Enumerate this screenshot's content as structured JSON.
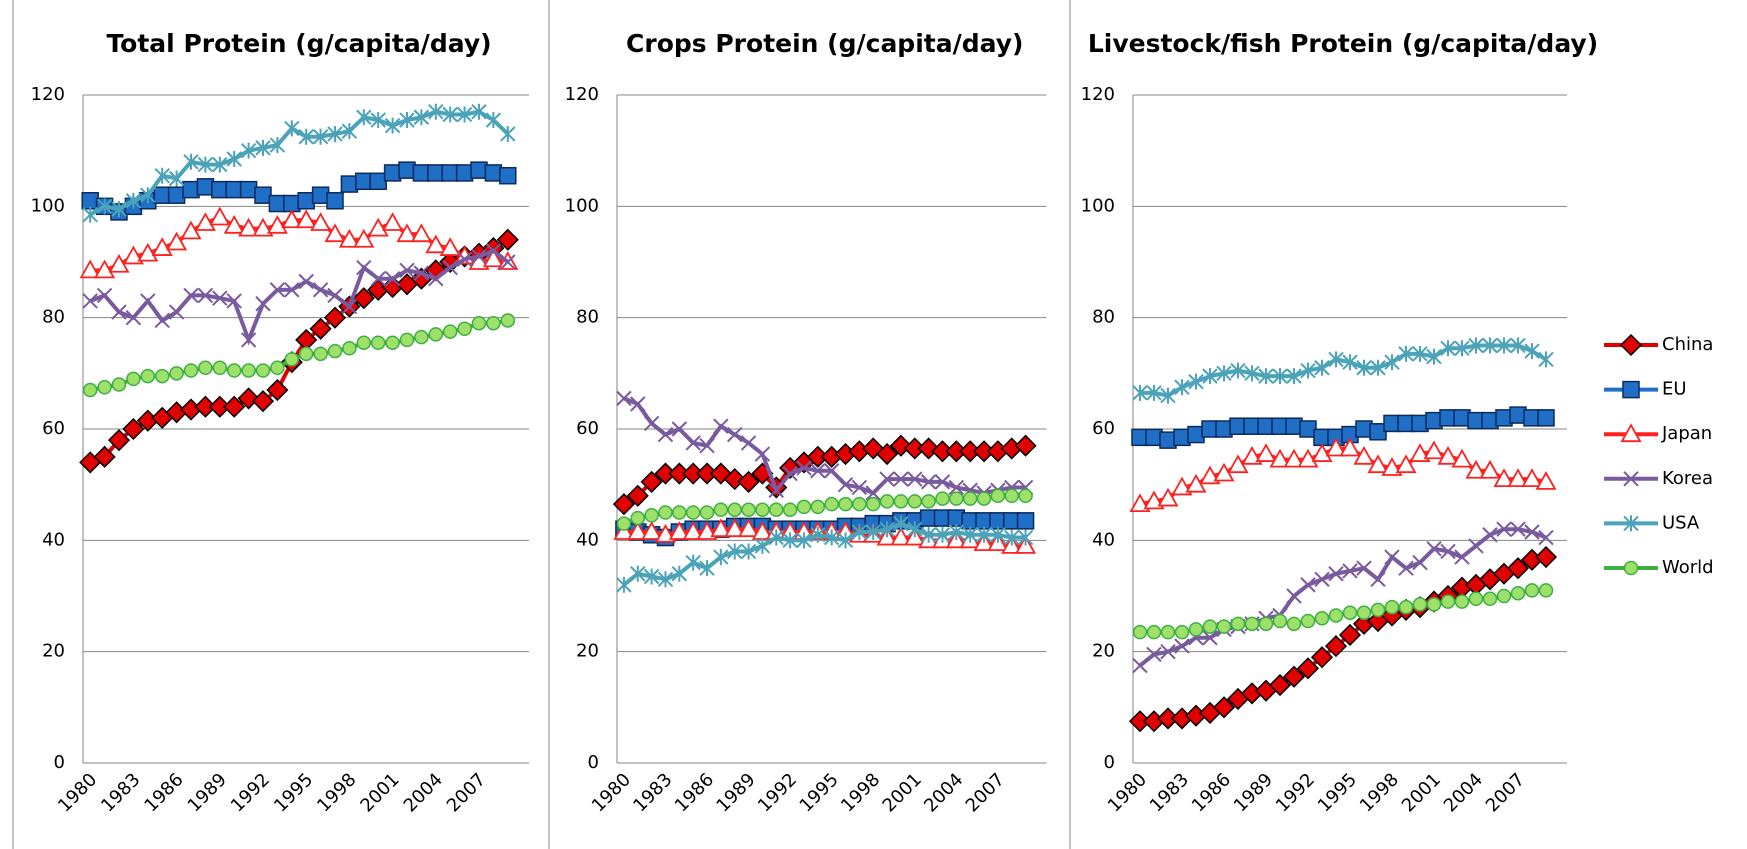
{
  "chart_data": [
    {
      "type": "line",
      "title": "Total Protein (g/capita/day)",
      "categories": [
        "1980",
        null,
        null,
        "1983",
        null,
        null,
        "1986",
        null,
        null,
        "1989",
        null,
        null,
        "1992",
        null,
        null,
        "1995",
        null,
        null,
        "1998",
        null,
        null,
        "2001",
        null,
        null,
        "2004",
        null,
        null,
        "2007",
        null,
        null
      ],
      "ylim": [
        0,
        120
      ],
      "yticks": [
        0,
        20,
        40,
        60,
        80,
        100,
        120
      ],
      "grid": true,
      "series": [
        {
          "name": "China",
          "color": "#e00000",
          "marker": "diamond",
          "values": [
            54,
            55,
            58,
            60,
            61.5,
            62,
            63,
            63.5,
            64,
            64,
            64,
            65.5,
            65,
            67,
            72,
            76,
            78,
            80,
            82,
            83.5,
            85,
            85.5,
            86,
            87,
            88.5,
            90,
            91,
            91.5,
            92.5,
            94
          ]
        },
        {
          "name": "EU",
          "color": "#1f6fc6",
          "marker": "square",
          "values": [
            101,
            100,
            99,
            100,
            101,
            102,
            102,
            103,
            103.5,
            103,
            103,
            103,
            102,
            100.5,
            100.5,
            101,
            102,
            101,
            104,
            104.5,
            104.5,
            106,
            106.5,
            106,
            106,
            106,
            106,
            106.5,
            106,
            105.5
          ]
        },
        {
          "name": "Japan",
          "color": "#ff2020",
          "marker": "triangle",
          "values": [
            88.5,
            88.5,
            89.5,
            91,
            91.5,
            92.5,
            93.5,
            95.5,
            97,
            98,
            96.5,
            96,
            96,
            96.5,
            97.5,
            97.5,
            97,
            95,
            94,
            94,
            96,
            97,
            95,
            95,
            93,
            92.5,
            91,
            90,
            90.5,
            90
          ]
        },
        {
          "name": "Korea",
          "color": "#7a5a9e",
          "marker": "x",
          "values": [
            83,
            84,
            81,
            80,
            83,
            79.5,
            81,
            84,
            84,
            83.5,
            83,
            76,
            82.5,
            85,
            85,
            86.5,
            85,
            84,
            82,
            89,
            87,
            87,
            88.5,
            88,
            87,
            89,
            90.5,
            91,
            92,
            90
          ]
        },
        {
          "name": "USA",
          "color": "#4aa3b8",
          "marker": "star",
          "values": [
            98.5,
            100,
            99.5,
            101,
            102,
            105.5,
            105,
            108,
            107.5,
            107.5,
            108.5,
            110,
            110.5,
            111,
            114,
            112.5,
            112.5,
            113,
            113.5,
            116,
            115.5,
            114.5,
            115.5,
            116,
            117,
            116.5,
            116.5,
            117,
            115.5,
            113
          ]
        },
        {
          "name": "World",
          "color": "#3cb043",
          "marker": "circle",
          "values": [
            67,
            67.5,
            68,
            69,
            69.5,
            69.5,
            70,
            70.5,
            71,
            71,
            70.5,
            70.5,
            70.5,
            71,
            72.5,
            73.5,
            73.5,
            74,
            74.5,
            75.5,
            75.5,
            75.5,
            76,
            76.5,
            77,
            77.5,
            78,
            79,
            79,
            79.5
          ]
        }
      ]
    },
    {
      "type": "line",
      "title": "Crops Protein (g/capita/day)",
      "categories": [
        "1980",
        null,
        null,
        "1983",
        null,
        null,
        "1986",
        null,
        null,
        "1989",
        null,
        null,
        "1992",
        null,
        null,
        "1995",
        null,
        null,
        "1998",
        null,
        null,
        "2001",
        null,
        null,
        "2004",
        null,
        null,
        "2007",
        null,
        null
      ],
      "ylim": [
        0,
        120
      ],
      "yticks": [
        0,
        20,
        40,
        60,
        80,
        100,
        120
      ],
      "grid": true,
      "series": [
        {
          "name": "China",
          "color": "#e00000",
          "marker": "diamond",
          "values": [
            46.5,
            48,
            50.5,
            52,
            52,
            52,
            52,
            52,
            51,
            50.5,
            52,
            49.5,
            53,
            54,
            55,
            55,
            55.5,
            56,
            56.5,
            55.5,
            57,
            56.5,
            56.5,
            56,
            56,
            56,
            56,
            56,
            56.5,
            57
          ]
        },
        {
          "name": "EU",
          "color": "#1f6fc6",
          "marker": "square",
          "values": [
            42,
            41.5,
            41,
            40.5,
            41.5,
            42,
            42,
            42,
            42.5,
            42.5,
            42.5,
            42,
            42,
            42,
            42,
            42,
            42.5,
            42.5,
            43,
            43,
            43.5,
            43.5,
            44,
            44,
            44,
            43.5,
            43.5,
            43.5,
            43.5,
            43.5
          ]
        },
        {
          "name": "Japan",
          "color": "#ff2020",
          "marker": "triangle",
          "values": [
            41.5,
            41.5,
            41.5,
            41,
            41.5,
            41.5,
            41.5,
            42,
            42,
            42,
            41.5,
            41.5,
            41.5,
            41.5,
            41.5,
            41.5,
            41.5,
            41,
            41,
            40.5,
            40.5,
            40.5,
            40,
            40,
            40,
            40,
            39.5,
            39.5,
            39,
            39
          ]
        },
        {
          "name": "Korea",
          "color": "#7a5a9e",
          "marker": "x",
          "values": [
            65.5,
            64.5,
            61,
            59,
            60,
            57.5,
            57,
            60.5,
            59,
            57.5,
            55.5,
            49,
            52,
            53,
            52.5,
            52.5,
            50,
            49.5,
            48.5,
            51,
            51,
            51,
            50.5,
            50.5,
            49.5,
            49,
            48.5,
            49,
            49.5,
            49.5
          ]
        },
        {
          "name": "USA",
          "color": "#4aa3b8",
          "marker": "star",
          "values": [
            32,
            34,
            33.5,
            33,
            34,
            36,
            35,
            37,
            38,
            38,
            39,
            40.5,
            40,
            40,
            41,
            40.5,
            40,
            41.5,
            41.5,
            42,
            43,
            42,
            41,
            41,
            41.5,
            41,
            41,
            41,
            40.5,
            40.5
          ]
        },
        {
          "name": "World",
          "color": "#3cb043",
          "marker": "circle",
          "values": [
            43,
            44,
            44.5,
            45,
            45,
            45,
            45,
            45.5,
            45.5,
            45.5,
            45.5,
            45.5,
            45.5,
            46,
            46,
            46.5,
            46.5,
            46.5,
            46.5,
            47,
            47,
            47,
            47,
            47.5,
            47.5,
            47.5,
            47.5,
            48,
            48,
            48
          ]
        }
      ]
    },
    {
      "type": "line",
      "title": "Livestock/fish Protein (g/capita/day)",
      "legend": "right",
      "categories": [
        "1980",
        null,
        null,
        "1983",
        null,
        null,
        "1986",
        null,
        null,
        "1989",
        null,
        null,
        "1992",
        null,
        null,
        "1995",
        null,
        null,
        "1998",
        null,
        null,
        "2001",
        null,
        null,
        "2004",
        null,
        null,
        "2007",
        null,
        null
      ],
      "ylim": [
        0,
        120
      ],
      "yticks": [
        0,
        20,
        40,
        60,
        80,
        100,
        120
      ],
      "grid": true,
      "series": [
        {
          "name": "China",
          "color": "#e00000",
          "marker": "diamond",
          "values": [
            7.5,
            7.5,
            8,
            8,
            8.5,
            9,
            10,
            11.5,
            12.5,
            13,
            14,
            15.5,
            17,
            19,
            21,
            23,
            25,
            25.5,
            26.5,
            27.5,
            28,
            29,
            30,
            31.5,
            32,
            33,
            34,
            35,
            36.5,
            37
          ]
        },
        {
          "name": "EU",
          "color": "#1f6fc6",
          "marker": "square",
          "values": [
            58.5,
            58.5,
            58,
            58.5,
            59,
            60,
            60,
            60.5,
            60.5,
            60.5,
            60.5,
            60.5,
            60,
            58.5,
            58.5,
            59,
            60,
            59.5,
            61,
            61,
            61,
            61.5,
            62,
            62,
            61.5,
            61.5,
            62,
            62.5,
            62,
            62
          ]
        },
        {
          "name": "Japan",
          "color": "#ff2020",
          "marker": "triangle",
          "values": [
            46.5,
            47,
            47.5,
            49.5,
            50,
            51.5,
            52,
            53.5,
            55,
            55.5,
            54.5,
            54.5,
            54.5,
            55.5,
            56.5,
            56.5,
            55,
            53.5,
            53,
            53.5,
            55.5,
            56,
            55,
            54.5,
            52.5,
            52.5,
            51,
            51,
            51,
            50.5
          ]
        },
        {
          "name": "Korea",
          "color": "#7a5a9e",
          "marker": "x",
          "values": [
            17.5,
            19.5,
            20,
            21,
            22.5,
            22.5,
            24,
            24.5,
            25,
            26,
            26.5,
            30,
            32,
            33,
            34,
            34.5,
            35,
            33,
            37,
            35,
            36,
            38.5,
            38,
            37,
            39,
            41,
            42,
            42,
            41.5,
            40.5
          ]
        },
        {
          "name": "USA",
          "color": "#4aa3b8",
          "marker": "star",
          "values": [
            66.5,
            66.5,
            66,
            67.5,
            68.5,
            69.5,
            70,
            70.5,
            70,
            69.5,
            69.5,
            69.5,
            70.5,
            71,
            72.5,
            72,
            71,
            71,
            72,
            73.5,
            73.5,
            73,
            74.5,
            74.5,
            75,
            75,
            75,
            75,
            74,
            72.5
          ]
        },
        {
          "name": "World",
          "color": "#3cb043",
          "marker": "circle",
          "values": [
            23.5,
            23.5,
            23.5,
            23.5,
            24,
            24.5,
            24.5,
            25,
            25,
            25,
            25.5,
            25,
            25.5,
            26,
            26.5,
            27,
            27,
            27.5,
            28,
            28,
            28.5,
            28.5,
            29,
            29,
            29.5,
            29.5,
            30,
            30.5,
            31,
            31
          ]
        }
      ]
    }
  ]
}
